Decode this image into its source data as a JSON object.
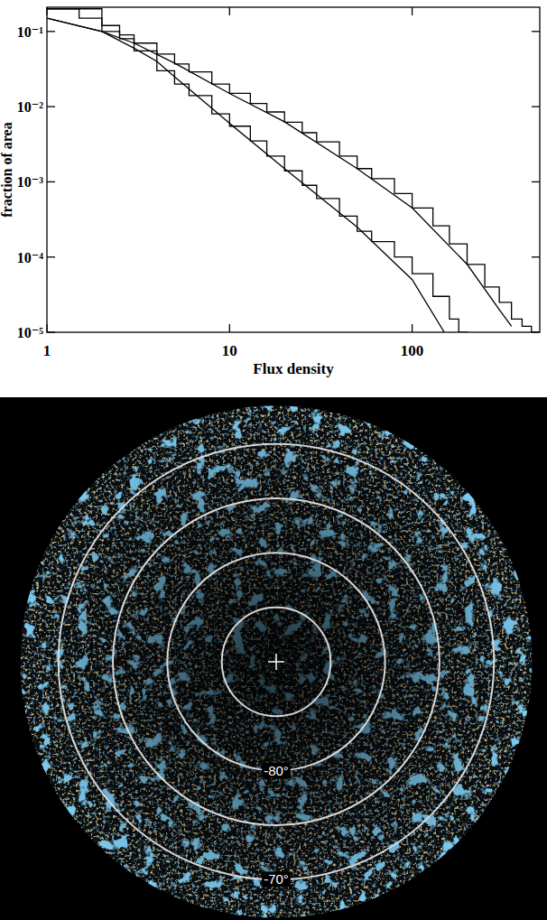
{
  "chart_data": [
    {
      "type": "line",
      "log": true,
      "xlabel": "Flux density",
      "ylabel": "fraction of area",
      "xlim": [
        1,
        500
      ],
      "ylim": [
        1e-05,
        0.21
      ],
      "xticks": [
        1,
        10,
        100
      ],
      "yticks": [
        {
          "value": 0.1,
          "label": "10⁻¹"
        },
        {
          "value": 0.01,
          "label": "10⁻²"
        },
        {
          "value": 0.001,
          "label": "10⁻³"
        },
        {
          "value": 0.0001,
          "label": "10⁻⁴"
        },
        {
          "value": 1e-05,
          "label": "10⁻⁵"
        }
      ],
      "color": "#000000",
      "series": [
        {
          "line_style": "steps",
          "x": [
            1,
            1.5,
            2,
            2.5,
            3,
            4,
            5,
            6,
            8,
            10,
            13,
            16,
            20,
            25,
            30,
            40,
            50,
            60,
            80,
            100,
            130,
            160,
            200,
            250,
            300,
            350,
            400,
            450
          ],
          "values": [
            0.2,
            0.2,
            0.12,
            0.09,
            0.07,
            0.05,
            0.037,
            0.029,
            0.02,
            0.015,
            0.011,
            0.0085,
            0.0062,
            0.0045,
            0.0034,
            0.0022,
            0.0015,
            0.0011,
            0.0007,
            0.00045,
            0.00026,
            0.00015,
            8e-05,
            4e-05,
            2.5e-05,
            1.5e-05,
            1.2e-05,
            1e-05
          ]
        },
        {
          "line_style": "solid",
          "x": [
            1,
            2,
            3,
            5,
            10,
            20,
            50,
            100,
            200,
            300,
            350
          ],
          "values": [
            0.15,
            0.1,
            0.07,
            0.038,
            0.015,
            0.0063,
            0.0015,
            0.00045,
            8e-05,
            2e-05,
            1.2e-05
          ]
        },
        {
          "line_style": "steps",
          "x": [
            1,
            1.5,
            2,
            2.5,
            3,
            4,
            5,
            6,
            8,
            10,
            13,
            16,
            20,
            25,
            30,
            40,
            50,
            60,
            80,
            100,
            130,
            160,
            180
          ],
          "values": [
            0.2,
            0.15,
            0.1,
            0.08,
            0.055,
            0.03,
            0.02,
            0.014,
            0.008,
            0.0055,
            0.0035,
            0.0022,
            0.0014,
            0.0009,
            0.0006,
            0.00035,
            0.00022,
            0.00016,
            0.0001,
            6e-05,
            3e-05,
            1.5e-05,
            1e-05
          ]
        },
        {
          "line_style": "solid",
          "x": [
            1,
            2,
            3,
            4,
            5,
            10,
            20,
            50,
            100,
            150
          ],
          "values": [
            0.15,
            0.1,
            0.06,
            0.04,
            0.025,
            0.006,
            0.0015,
            0.00025,
            5e-05,
            1e-05
          ]
        }
      ]
    },
    {
      "type": "map",
      "marker": "cross",
      "rlim": [
        -90,
        -66.5
      ],
      "rticks": [
        {
          "value": -85,
          "label": null
        },
        {
          "value": -80,
          "label": "-80°"
        },
        {
          "value": -75,
          "label": null
        },
        {
          "value": -70,
          "label": "-70°"
        }
      ]
    }
  ]
}
